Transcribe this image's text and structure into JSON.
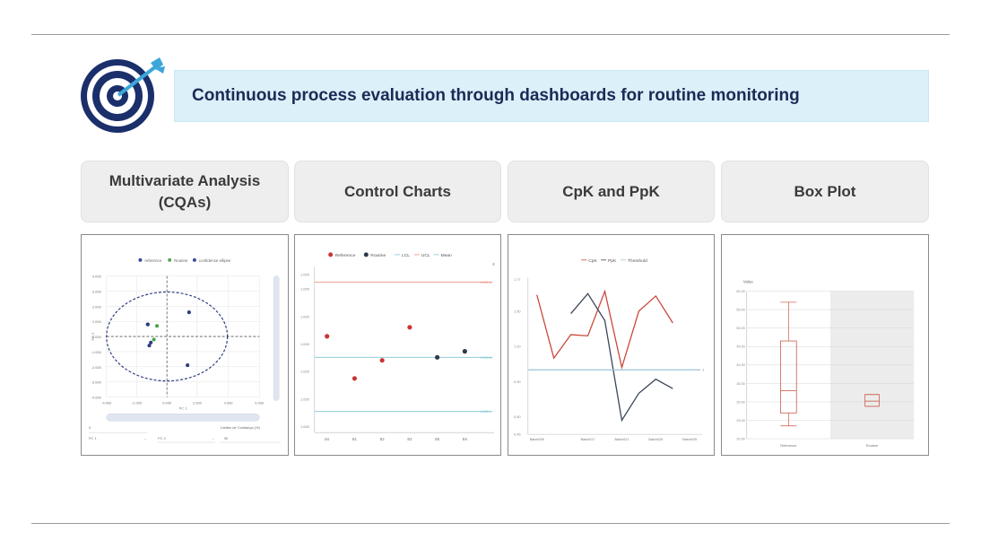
{
  "banner": {
    "title": "Continuous process evaluation through dashboards for routine monitoring"
  },
  "tabs": [
    {
      "line1": "Multivariate Analysis",
      "line2": "(CQAs)"
    },
    {
      "line1": "Control Charts"
    },
    {
      "line1": "CpK and PpK"
    },
    {
      "line1": "Box Plot"
    }
  ],
  "colors": {
    "navy": "#1b2f6b",
    "accent": "#3ba7d9",
    "reference": "#cc3333",
    "routine": "#2e3a4a",
    "banner_bg": "#dcf0fa"
  },
  "mva": {
    "legend": [
      "reference",
      "Routine",
      "confidence ellipse"
    ],
    "y_axis_label": "PC 2",
    "x_axis_label": "PC 1",
    "x_ticks": [
      "-4.000",
      "-2.000",
      "0.000",
      "2.000",
      "4.000",
      "6.000"
    ],
    "y_ticks": [
      "4.000",
      "3.000",
      "2.000",
      "1.000",
      "0.000",
      "-1.000",
      "-2.000",
      "-3.000",
      "-4.000"
    ],
    "controls": [
      "X",
      "PC 1",
      "PC 2",
      "Limites de Confiança (%)",
      "95"
    ],
    "chart_data": {
      "type": "scatter",
      "series": [
        {
          "name": "reference",
          "points": [
            [
              -1.3,
              0.8
            ],
            [
              -1.1,
              -0.4
            ]
          ]
        },
        {
          "name": "Routine",
          "points": [
            [
              -0.7,
              0.7
            ],
            [
              -0.9,
              -0.2
            ]
          ]
        },
        {
          "name": "confidence ellipse",
          "points": [
            [
              1.4,
              1.6
            ],
            [
              1.3,
              -1.9
            ],
            [
              -1.3,
              0.8
            ],
            [
              -1.2,
              -0.6
            ]
          ]
        }
      ],
      "xlim": [
        -4,
        6
      ],
      "ylim": [
        -4,
        4
      ]
    }
  },
  "control": {
    "legend": [
      "Reference",
      "Routine",
      "LCL",
      "UCL",
      "Mean"
    ],
    "y_ticks": [
      "1.005",
      "1.005",
      "1.005",
      "1.005",
      "1.005",
      "1.005",
      "1.005"
    ],
    "x_ticks": [
      "B4",
      "B1",
      "B2",
      "B3",
      "B5",
      "B6"
    ],
    "limit_labels": [
      "1.005 U",
      "1.005 M",
      "1.005 L"
    ],
    "chart_data": {
      "type": "scatter",
      "categories": [
        "B4",
        "B1",
        "B2",
        "B3",
        "B5",
        "B6"
      ],
      "series": [
        {
          "name": "Reference",
          "values": [
            62,
            48,
            54,
            65,
            null,
            null
          ]
        },
        {
          "name": "Routine",
          "values": [
            null,
            null,
            null,
            null,
            55,
            57
          ]
        }
      ],
      "limits": {
        "UCL": 80,
        "Mean": 55,
        "LCL": 37
      },
      "ylim": [
        30,
        85
      ]
    }
  },
  "cpk": {
    "legend": [
      "CpK",
      "PpK",
      "Threshold"
    ],
    "y_ticks": [
      "1.77",
      "1.50",
      "1.20",
      "0.90",
      "0.60",
      "0.45"
    ],
    "x_ticks": [
      "Batch008",
      "Batch017",
      "Batch021",
      "Batch025",
      "Batch029"
    ],
    "threshold_label": "1",
    "chart_data": {
      "type": "line",
      "x": [
        "Batch008",
        "Batch011",
        "Batch014",
        "Batch017",
        "Batch019",
        "Batch021",
        "Batch023",
        "Batch025",
        "Batch027",
        "Batch029"
      ],
      "series": [
        {
          "name": "CpK",
          "values": [
            1.64,
            1.1,
            1.3,
            1.29,
            1.67,
            1.02,
            1.5,
            1.63,
            1.4,
            null
          ]
        },
        {
          "name": "PpK",
          "values": [
            null,
            null,
            1.48,
            1.65,
            1.42,
            0.57,
            0.8,
            0.92,
            0.84,
            null
          ]
        },
        {
          "name": "Threshold",
          "values": [
            1.0,
            1.0,
            1.0,
            1.0,
            1.0,
            1.0,
            1.0,
            1.0,
            1.0,
            1.0
          ]
        }
      ],
      "ylim": [
        0.45,
        1.77
      ]
    }
  },
  "box": {
    "y_label": "Value",
    "y_ticks": [
      "60.00",
      "55.00",
      "50.00",
      "45.00",
      "40.00",
      "35.00",
      "30.00",
      "25.00",
      "20.00"
    ],
    "categories": [
      "Reference",
      "Routine"
    ],
    "chart_data": {
      "type": "box",
      "categories": [
        "Reference",
        "Routine"
      ],
      "series": [
        {
          "name": "Reference",
          "min": 23.5,
          "q1": 27,
          "median": 33,
          "q3": 46.5,
          "max": 57
        },
        {
          "name": "Routine",
          "min": 28.8,
          "q1": 28.8,
          "median": 30.2,
          "q3": 32,
          "max": 32
        }
      ],
      "ylim": [
        20,
        60
      ]
    }
  }
}
